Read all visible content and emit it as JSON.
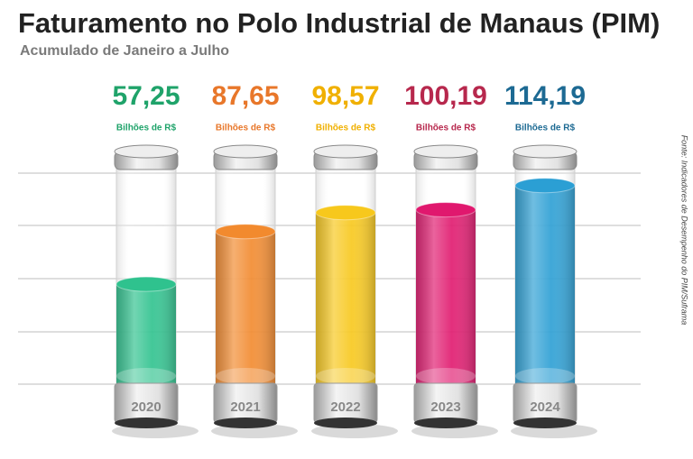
{
  "chart_data": {
    "type": "bar",
    "title": "Faturamento no Polo Industrial de Manaus (PIM)",
    "subtitle": "Acumulado de Janeiro a Julho",
    "unit_label": "Bilhões de R$",
    "source": "Fonte: Indicadores de Desempenho do PIM/Suframa",
    "categories": [
      "2020",
      "2021",
      "2022",
      "2023",
      "2024"
    ],
    "values": [
      57.25,
      87.65,
      98.57,
      100.19,
      114.19
    ],
    "value_labels": [
      "57,25",
      "87,65",
      "98,57",
      "100,19",
      "114,19"
    ],
    "colors": [
      "#2fc28e",
      "#f28a2e",
      "#f7c81c",
      "#e0186e",
      "#2b9fd4"
    ],
    "label_colors": [
      "#1fa36a",
      "#e8772a",
      "#f0b000",
      "#b7284d",
      "#1d6a93"
    ],
    "ylim": [
      0,
      125
    ]
  }
}
